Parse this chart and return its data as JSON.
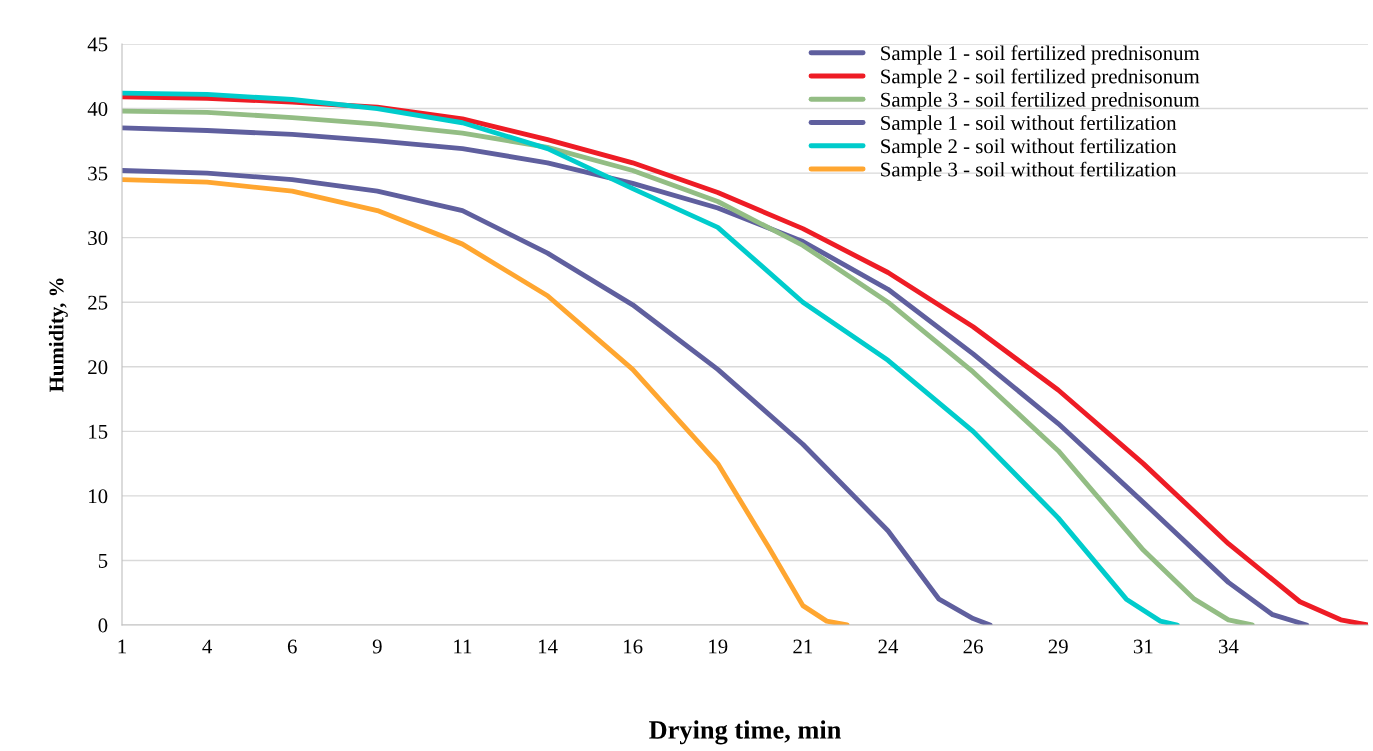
{
  "chart_data": {
    "type": "line",
    "xlabel": "Drying time, min",
    "ylabel": "Humidity, %",
    "xlim": [
      1,
      37.6
    ],
    "xticks": [
      1,
      {
        "value": 3.5,
        "label": "4"
      },
      6,
      {
        "value": 8.5,
        "label": "9"
      },
      11,
      {
        "value": 13.5,
        "label": "14"
      },
      16,
      {
        "value": 18.5,
        "label": "19"
      },
      21,
      {
        "value": 23.5,
        "label": "24"
      },
      26,
      {
        "value": 28.5,
        "label": "29"
      },
      31,
      {
        "value": 33.5,
        "label": "34"
      }
    ],
    "ylim": [
      0,
      45
    ],
    "yticks": [
      0,
      5,
      10,
      15,
      20,
      25,
      30,
      35,
      40,
      45
    ],
    "grid": "y",
    "legend": "top right",
    "marker": "none",
    "line_style": "solid",
    "series": [
      {
        "name": "Sample 1 - soil fertilized prednisonum",
        "color": "#5f5f9e",
        "x": [
          1,
          3.5,
          6,
          8.5,
          11,
          13.5,
          16,
          18.5,
          21,
          23.5,
          26,
          28.5,
          31,
          33.5,
          34.8,
          35.8
        ],
        "values": [
          38.5,
          38.3,
          38.0,
          37.5,
          36.9,
          35.8,
          34.2,
          32.3,
          29.7,
          26.0,
          21.0,
          15.6,
          9.5,
          3.3,
          0.8,
          0
        ]
      },
      {
        "name": "Sample 2 - soil fertilized prednisonum",
        "color": "#ee1c25",
        "x": [
          1,
          3.5,
          6,
          8.5,
          11,
          13.5,
          16,
          18.5,
          21,
          23.5,
          26,
          28.5,
          31,
          33.5,
          35.6,
          36.8,
          37.6
        ],
        "values": [
          40.9,
          40.8,
          40.5,
          40.1,
          39.2,
          37.6,
          35.8,
          33.5,
          30.7,
          27.3,
          23.1,
          18.2,
          12.5,
          6.3,
          1.8,
          0.4,
          0
        ]
      },
      {
        "name": "Sample 3 - soil fertilized prednisonum",
        "color": "#93bd84",
        "x": [
          1,
          3.5,
          6,
          8.5,
          11,
          13.5,
          16,
          18.5,
          21,
          23.5,
          26,
          28.5,
          31,
          32.5,
          33.5,
          34.2
        ],
        "values": [
          39.8,
          39.7,
          39.3,
          38.8,
          38.1,
          37.0,
          35.2,
          32.8,
          29.4,
          25.0,
          19.6,
          13.5,
          5.8,
          2.0,
          0.4,
          0
        ]
      },
      {
        "name": "Sample 1 - soil without fertilization",
        "color": "#5f5f9e",
        "x": [
          1,
          3.5,
          6,
          8.5,
          11,
          13.5,
          16,
          18.5,
          21,
          23.5,
          25,
          26,
          26.5
        ],
        "values": [
          35.2,
          35.0,
          34.5,
          33.6,
          32.1,
          28.8,
          24.8,
          19.8,
          14.0,
          7.3,
          2.0,
          0.5,
          0
        ]
      },
      {
        "name": "Sample 2 - soil without fertilization",
        "color": "#00cccc",
        "x": [
          1,
          3.5,
          6,
          8.5,
          11,
          13.5,
          16,
          18.5,
          21,
          23.5,
          26,
          28.5,
          30.5,
          31.5,
          32.0
        ],
        "values": [
          41.2,
          41.1,
          40.7,
          40.0,
          38.9,
          36.9,
          33.8,
          30.8,
          25.0,
          20.5,
          15.0,
          8.3,
          2.0,
          0.3,
          0
        ]
      },
      {
        "name": "Sample 3 - soil without fertilization",
        "color": "#ffa630",
        "x": [
          1,
          3.5,
          6,
          8.5,
          11,
          13.5,
          16,
          18.5,
          20,
          21,
          21.7,
          22.3
        ],
        "values": [
          34.5,
          34.3,
          33.6,
          32.1,
          29.5,
          25.5,
          19.8,
          12.5,
          6.0,
          1.5,
          0.3,
          0
        ]
      }
    ]
  }
}
